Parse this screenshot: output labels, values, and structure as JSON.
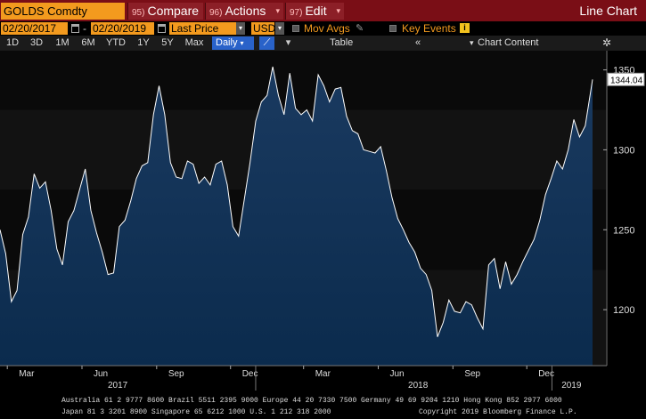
{
  "command_bar": {
    "ticker": "GOLDS Comdty",
    "compare": {
      "num": "95)",
      "label": "Compare"
    },
    "actions": {
      "num": "96)",
      "label": "Actions"
    },
    "edit": {
      "num": "97)",
      "label": "Edit"
    },
    "title": "Line Chart"
  },
  "options_bar": {
    "start_date": "02/20/2017",
    "end_date": "02/20/2019",
    "field": "Last Price",
    "currency": "USD",
    "mov_avgs": "Mov Avgs",
    "key_events": "Key Events"
  },
  "range_bar": {
    "ranges": [
      "1D",
      "3D",
      "1M",
      "6M",
      "YTD",
      "1Y",
      "5Y",
      "Max"
    ],
    "period": "Daily",
    "table": "Table",
    "chart_content": "Chart Content"
  },
  "chart_data": {
    "type": "area",
    "ylim": [
      1165,
      1362
    ],
    "y_ticks": [
      "1200",
      "1250",
      "1300",
      "1350"
    ],
    "last_value_label": "1344.04",
    "month_labels": [
      "Mar",
      "Jun",
      "Sep",
      "Dec",
      "Mar",
      "Jun",
      "Sep",
      "Dec"
    ],
    "year_labels": [
      "2017",
      "2018",
      "2019"
    ],
    "series": [
      {
        "x": [
          "2017-02-20",
          "2017-02-27",
          "2017-03-06",
          "2017-03-13",
          "2017-03-20",
          "2017-03-27",
          "2017-04-03",
          "2017-04-10",
          "2017-04-17",
          "2017-04-24",
          "2017-05-01",
          "2017-05-08",
          "2017-05-15",
          "2017-05-22",
          "2017-05-29",
          "2017-06-05",
          "2017-06-12",
          "2017-06-19",
          "2017-06-26",
          "2017-07-03",
          "2017-07-10",
          "2017-07-17",
          "2017-07-24",
          "2017-07-31",
          "2017-08-07",
          "2017-08-14",
          "2017-08-21",
          "2017-08-28",
          "2017-09-04",
          "2017-09-11",
          "2017-09-18",
          "2017-09-25",
          "2017-10-02",
          "2017-10-09",
          "2017-10-16",
          "2017-10-23",
          "2017-10-30",
          "2017-11-06",
          "2017-11-13",
          "2017-11-20",
          "2017-11-27",
          "2017-12-04",
          "2017-12-11",
          "2017-12-18",
          "2017-12-25",
          "2018-01-01",
          "2018-01-08",
          "2018-01-15",
          "2018-01-22",
          "2018-01-29",
          "2018-02-05",
          "2018-02-12",
          "2018-02-19",
          "2018-02-26",
          "2018-03-05",
          "2018-03-12",
          "2018-03-19",
          "2018-03-26",
          "2018-04-02",
          "2018-04-09",
          "2018-04-16",
          "2018-04-23",
          "2018-04-30",
          "2018-05-07",
          "2018-05-14",
          "2018-05-21",
          "2018-05-28",
          "2018-06-04",
          "2018-06-11",
          "2018-06-18",
          "2018-06-25",
          "2018-07-02",
          "2018-07-09",
          "2018-07-16",
          "2018-07-23",
          "2018-07-30",
          "2018-08-06",
          "2018-08-13",
          "2018-08-20",
          "2018-08-27",
          "2018-09-03",
          "2018-09-10",
          "2018-09-17",
          "2018-09-24",
          "2018-10-01",
          "2018-10-08",
          "2018-10-15",
          "2018-10-22",
          "2018-10-29",
          "2018-11-05",
          "2018-11-12",
          "2018-11-19",
          "2018-11-26",
          "2018-12-03",
          "2018-12-10",
          "2018-12-17",
          "2018-12-24",
          "2018-12-31",
          "2019-01-07",
          "2019-01-14",
          "2019-01-21",
          "2019-01-28",
          "2019-02-04",
          "2019-02-11",
          "2019-02-20"
        ],
        "values": [
          1250,
          1235,
          1205,
          1212,
          1247,
          1258,
          1285,
          1276,
          1280,
          1262,
          1238,
          1228,
          1255,
          1262,
          1275,
          1288,
          1262,
          1248,
          1236,
          1222,
          1223,
          1252,
          1256,
          1268,
          1282,
          1290,
          1292,
          1322,
          1340,
          1322,
          1292,
          1283,
          1282,
          1293,
          1291,
          1279,
          1283,
          1278,
          1291,
          1293,
          1278,
          1252,
          1246,
          1269,
          1292,
          1318,
          1330,
          1334,
          1352,
          1334,
          1322,
          1348,
          1326,
          1322,
          1325,
          1318,
          1347,
          1340,
          1330,
          1338,
          1339,
          1321,
          1312,
          1310,
          1300,
          1299,
          1298,
          1302,
          1287,
          1270,
          1257,
          1250,
          1242,
          1236,
          1226,
          1222,
          1212,
          1183,
          1192,
          1206,
          1199,
          1198,
          1205,
          1203,
          1195,
          1188,
          1228,
          1232,
          1213,
          1230,
          1216,
          1222,
          1230,
          1237,
          1244,
          1256,
          1272,
          1282,
          1293,
          1288,
          1300,
          1319,
          1308,
          1315,
          1344.04
        ]
      }
    ]
  },
  "footer": {
    "line1": "Australia 61 2 9777 8600 Brazil 5511 2395 9000 Europe 44 20 7330 7500 Germany 49 69 9204 1210 Hong Kong 852 2977 6000",
    "line2": "Japan 81 3 3201 8900        Singapore 65 6212 1000      U.S. 1 212 318 2000",
    "copyright": "Copyright 2019 Bloomberg Finance L.P."
  },
  "colors": {
    "command_bg": "#7a0e16",
    "orange": "#f39a1e",
    "accent_blue": "#2962c9",
    "area_fill": "#0b2b4d",
    "line": "#ffffff"
  },
  "icons": [
    "calendar-icon",
    "pencil-icon",
    "info-icon",
    "line-chart-icon",
    "settings-icon"
  ]
}
